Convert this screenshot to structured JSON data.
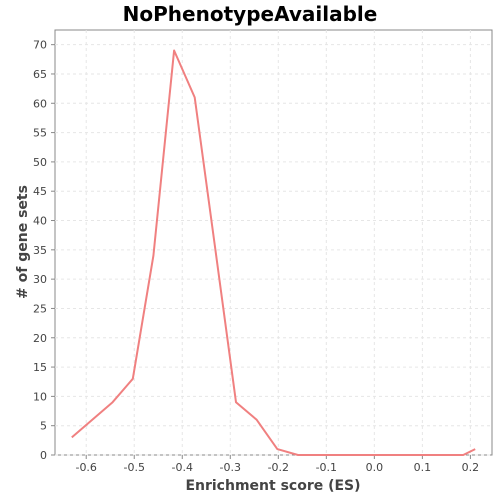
{
  "chart_data": {
    "type": "line",
    "title": "NoPhenotypeAvailable",
    "xlabel": "Enrichment score (ES)",
    "ylabel": "# of gene sets",
    "xlim": [
      -0.665,
      0.245
    ],
    "ylim": [
      0,
      72.5
    ],
    "x_ticks": [
      -0.6,
      -0.5,
      -0.4,
      -0.3,
      -0.2,
      -0.1,
      0.0,
      0.1,
      0.2
    ],
    "x_tick_labels": [
      "-0.6",
      "-0.5",
      "-0.4",
      "-0.3",
      "-0.2",
      "-0.1",
      "0.0",
      "0.1",
      "0.2"
    ],
    "y_ticks": [
      0,
      5,
      10,
      15,
      20,
      25,
      30,
      35,
      40,
      45,
      50,
      55,
      60,
      65,
      70
    ],
    "y_tick_labels": [
      "0",
      "5",
      "10",
      "15",
      "20",
      "25",
      "30",
      "35",
      "40",
      "45",
      "50",
      "55",
      "60",
      "65",
      "70"
    ],
    "grid": true,
    "series": [
      {
        "color": "#f08080",
        "x": [
          -0.63,
          -0.545,
          -0.503,
          -0.46,
          -0.417,
          -0.374,
          -0.331,
          -0.288,
          -0.245,
          -0.202,
          -0.159,
          -0.116,
          -0.073,
          -0.03,
          0.013,
          0.056,
          0.099,
          0.142,
          0.185,
          0.21
        ],
        "y": [
          3,
          9,
          13,
          34,
          69,
          61,
          35,
          9,
          6,
          1,
          0,
          0,
          0,
          0,
          0,
          0,
          0,
          0,
          0,
          1
        ]
      }
    ]
  }
}
